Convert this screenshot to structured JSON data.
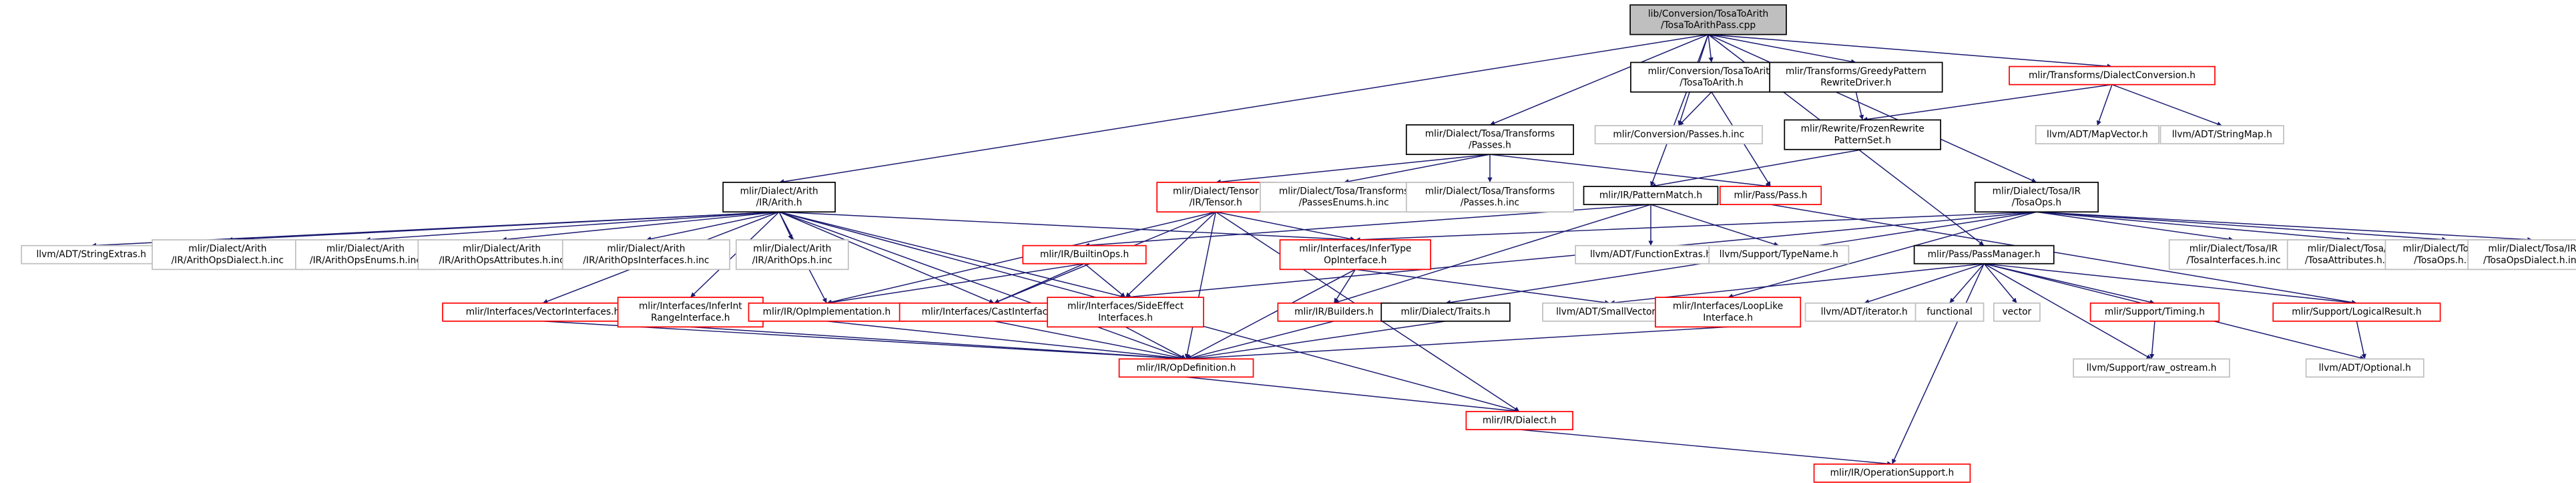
{
  "nodes": [
    {
      "lines": [
        "lib/Conversion/TosaToArith",
        "/TosaToArithPass.cpp"
      ]
    },
    {
      "lines": [
        "mlir/Conversion/TosaToArith",
        "/TosaToArith.h"
      ]
    },
    {
      "lines": [
        "mlir/Transforms/GreedyPattern",
        "RewriteDriver.h"
      ]
    },
    {
      "lines": [
        "mlir/Transforms/DialectConversion.h"
      ]
    },
    {
      "lines": [
        "mlir/Conversion/Passes.h.inc"
      ]
    },
    {
      "lines": [
        "mlir/Rewrite/FrozenRewrite",
        "PatternSet.h"
      ]
    },
    {
      "lines": [
        "llvm/ADT/MapVector.h"
      ]
    },
    {
      "lines": [
        "llvm/ADT/StringMap.h"
      ]
    },
    {
      "lines": [
        "mlir/Dialect/Tosa/Transforms",
        "/Passes.h"
      ]
    },
    {
      "lines": [
        "mlir/Dialect/Arith",
        "/IR/Arith.h"
      ]
    },
    {
      "lines": [
        "mlir/Dialect/Tensor",
        "/IR/Tensor.h"
      ]
    },
    {
      "lines": [
        "mlir/Dialect/Tosa/Transforms",
        "/PassesEnums.h.inc"
      ]
    },
    {
      "lines": [
        "mlir/Dialect/Tosa/Transforms",
        "/Passes.h.inc"
      ]
    },
    {
      "lines": [
        "mlir/IR/PatternMatch.h"
      ]
    },
    {
      "lines": [
        "mlir/Pass/Pass.h"
      ]
    },
    {
      "lines": [
        "mlir/Dialect/Tosa/IR",
        "/TosaOps.h"
      ]
    },
    {
      "lines": [
        "llvm/ADT/StringExtras.h"
      ]
    },
    {
      "lines": [
        "mlir/Dialect/Arith",
        "/IR/ArithOpsDialect.h.inc"
      ]
    },
    {
      "lines": [
        "mlir/Dialect/Arith",
        "/IR/ArithOpsEnums.h.inc"
      ]
    },
    {
      "lines": [
        "mlir/Dialect/Arith",
        "/IR/ArithOpsAttributes.h.inc"
      ]
    },
    {
      "lines": [
        "mlir/Dialect/Arith",
        "/IR/ArithOpsInterfaces.h.inc"
      ]
    },
    {
      "lines": [
        "mlir/Dialect/Arith",
        "/IR/ArithOps.h.inc"
      ]
    },
    {
      "lines": [
        "mlir/IR/BuiltinOps.h"
      ]
    },
    {
      "lines": [
        "mlir/Interfaces/InferType",
        "OpInterface.h"
      ]
    },
    {
      "lines": [
        "llvm/ADT/FunctionExtras.h"
      ]
    },
    {
      "lines": [
        "llvm/Support/TypeName.h"
      ]
    },
    {
      "lines": [
        "mlir/Pass/PassManager.h"
      ]
    },
    {
      "lines": [
        "mlir/Dialect/Tosa/IR",
        "/TosaInterfaces.h.inc"
      ]
    },
    {
      "lines": [
        "mlir/Dialect/Tosa/IR",
        "/TosaAttributes.h.inc"
      ]
    },
    {
      "lines": [
        "mlir/Dialect/Tosa/IR",
        "/TosaOps.h.inc"
      ]
    },
    {
      "lines": [
        "mlir/Dialect/Tosa/IR",
        "/TosaOpsDialect.h.inc"
      ]
    },
    {
      "lines": [
        "mlir/Interfaces/VectorInterfaces.h"
      ]
    },
    {
      "lines": [
        "mlir/Interfaces/InferInt",
        "RangeInterface.h"
      ]
    },
    {
      "lines": [
        "mlir/IR/OpImplementation.h"
      ]
    },
    {
      "lines": [
        "mlir/Interfaces/CastInterfaces.h"
      ]
    },
    {
      "lines": [
        "mlir/Interfaces/SideEffect",
        "Interfaces.h"
      ]
    },
    {
      "lines": [
        "mlir/IR/Builders.h"
      ]
    },
    {
      "lines": [
        "mlir/Dialect/Traits.h"
      ]
    },
    {
      "lines": [
        "llvm/ADT/SmallVector.h"
      ]
    },
    {
      "lines": [
        "mlir/Interfaces/LoopLike",
        "Interface.h"
      ]
    },
    {
      "lines": [
        "llvm/ADT/iterator.h"
      ]
    },
    {
      "lines": [
        "functional"
      ]
    },
    {
      "lines": [
        "vector"
      ]
    },
    {
      "lines": [
        "mlir/Support/Timing.h"
      ]
    },
    {
      "lines": [
        "mlir/Support/LogicalResult.h"
      ]
    },
    {
      "lines": [
        "mlir/IR/OpDefinition.h"
      ]
    },
    {
      "lines": [
        "llvm/Support/raw_ostream.h"
      ]
    },
    {
      "lines": [
        "llvm/ADT/Optional.h"
      ]
    },
    {
      "lines": [
        "mlir/IR/Dialect.h"
      ]
    },
    {
      "lines": [
        "mlir/IR/OperationSupport.h"
      ]
    }
  ]
}
